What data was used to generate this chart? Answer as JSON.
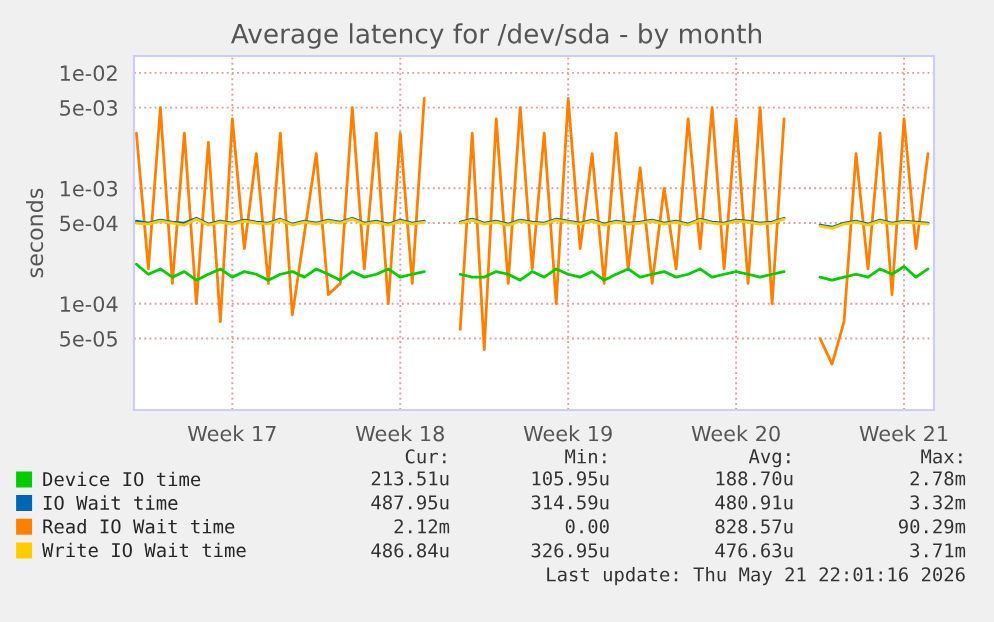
{
  "chart_data": {
    "type": "line",
    "title": "Average latency for /dev/sda - by month",
    "ylabel": "seconds",
    "log": "y",
    "grid": true,
    "legend": "bottom left",
    "line_style": "solid",
    "marker": "none",
    "ylim": [
      1.2e-05,
      0.014
    ],
    "yticks": [
      {
        "value": 5e-05,
        "label": "5e-05"
      },
      {
        "value": 0.0001,
        "label": "1e-04"
      },
      {
        "value": 0.0005,
        "label": "5e-04"
      },
      {
        "value": 0.001,
        "label": "1e-03"
      },
      {
        "value": 0.005,
        "label": "5e-03"
      },
      {
        "value": 0.01,
        "label": "1e-02"
      }
    ],
    "categories": [
      null,
      null,
      null,
      null,
      null,
      null,
      null,
      null,
      "Week 17",
      null,
      null,
      null,
      null,
      null,
      null,
      null,
      null,
      null,
      null,
      null,
      null,
      null,
      "Week 18",
      null,
      null,
      null,
      null,
      null,
      null,
      null,
      null,
      null,
      null,
      null,
      null,
      null,
      "Week 19",
      null,
      null,
      null,
      null,
      null,
      null,
      null,
      null,
      null,
      null,
      null,
      null,
      null,
      "Week 20",
      null,
      null,
      null,
      null,
      null,
      null,
      null,
      null,
      null,
      null,
      null,
      null,
      null,
      "Week 21",
      null,
      null
    ],
    "series": [
      {
        "name": "Read IO Wait time",
        "color": "#ff8000",
        "values": [
          0.003,
          0.0002,
          0.005,
          0.00015,
          0.003,
          0.0001,
          0.0025,
          7e-05,
          0.004,
          0.0003,
          0.002,
          0.00015,
          0.003,
          8e-05,
          0.0004,
          0.002,
          0.00012,
          0.00015,
          0.005,
          0.0002,
          0.003,
          0.0001,
          0.003,
          0.00015,
          0.006,
          null,
          null,
          6e-05,
          0.003,
          4e-05,
          0.004,
          0.00015,
          0.005,
          0.0002,
          0.003,
          0.0001,
          0.006,
          0.0003,
          0.002,
          0.00015,
          0.003,
          0.0002,
          0.0015,
          0.00015,
          0.001,
          0.0002,
          0.004,
          0.0003,
          0.005,
          0.0002,
          0.004,
          0.00015,
          0.005,
          0.0001,
          0.004,
          null,
          null,
          5e-05,
          3e-05,
          7e-05,
          0.002,
          0.0002,
          0.003,
          0.00012,
          0.004,
          0.0003,
          0.002
        ]
      },
      {
        "name": "IO Wait time",
        "color": "#0066b3",
        "values": [
          0.00052,
          0.0005,
          0.00053,
          0.00051,
          0.0005,
          0.00055,
          0.00049,
          0.00052,
          0.0005,
          0.00053,
          0.00051,
          0.0005,
          0.00054,
          0.00049,
          0.00052,
          0.0005,
          0.00053,
          0.00051,
          0.00055,
          0.0005,
          0.00052,
          0.00049,
          0.00053,
          0.0005,
          0.00052,
          null,
          null,
          0.00051,
          0.00054,
          0.0005,
          0.00052,
          0.00049,
          0.00053,
          0.00051,
          0.0005,
          0.00054,
          0.00052,
          0.0005,
          0.00053,
          0.00049,
          0.00052,
          0.0005,
          0.00051,
          0.00053,
          0.0005,
          0.00052,
          0.00049,
          0.00054,
          0.00051,
          0.0005,
          0.00053,
          0.00052,
          0.0005,
          0.00051,
          0.00055,
          null,
          null,
          0.00048,
          0.00046,
          0.0005,
          0.00052,
          0.00049,
          0.00053,
          0.0005,
          0.00052,
          0.00051,
          0.0005
        ]
      },
      {
        "name": "Write IO Wait time",
        "color": "#ffcc00",
        "values": [
          0.0005,
          0.00049,
          0.00052,
          0.0005,
          0.00048,
          0.00054,
          0.00048,
          0.00051,
          0.00049,
          0.00052,
          0.0005,
          0.00049,
          0.00053,
          0.00048,
          0.00051,
          0.00049,
          0.00052,
          0.0005,
          0.00054,
          0.00049,
          0.00051,
          0.00048,
          0.00052,
          0.00049,
          0.00051,
          null,
          null,
          0.0005,
          0.00053,
          0.00049,
          0.00051,
          0.00048,
          0.00052,
          0.0005,
          0.00049,
          0.00053,
          0.00051,
          0.00049,
          0.00052,
          0.00048,
          0.00051,
          0.00049,
          0.0005,
          0.00052,
          0.00049,
          0.00051,
          0.00048,
          0.00053,
          0.0005,
          0.00049,
          0.00052,
          0.00051,
          0.00049,
          0.0005,
          0.00054,
          null,
          null,
          0.00047,
          0.00045,
          0.00049,
          0.00051,
          0.00048,
          0.00052,
          0.00049,
          0.00051,
          0.0005,
          0.00049
        ]
      },
      {
        "name": "Device IO time",
        "color": "#00cc00",
        "values": [
          0.00022,
          0.00018,
          0.0002,
          0.00017,
          0.00019,
          0.00016,
          0.00018,
          0.0002,
          0.00017,
          0.00019,
          0.00018,
          0.00016,
          0.00018,
          0.00019,
          0.00017,
          0.0002,
          0.00018,
          0.00016,
          0.00019,
          0.00017,
          0.00018,
          0.0002,
          0.00017,
          0.00018,
          0.00019,
          null,
          null,
          0.00018,
          0.00017,
          0.00017,
          0.00019,
          0.00018,
          0.00016,
          0.00019,
          0.00017,
          0.0002,
          0.00018,
          0.00017,
          0.00019,
          0.00016,
          0.00018,
          0.0002,
          0.00017,
          0.00018,
          0.00019,
          0.00017,
          0.00018,
          0.0002,
          0.00017,
          0.00018,
          0.00019,
          0.00018,
          0.00017,
          0.00018,
          0.00019,
          null,
          null,
          0.00017,
          0.00016,
          0.00017,
          0.00018,
          0.00017,
          0.0002,
          0.00018,
          0.00021,
          0.00017,
          0.0002
        ]
      }
    ],
    "annotations": [
      "Cur:",
      "Min:",
      "Avg:",
      "Max:",
      "213.51u",
      "105.95u",
      "188.70u",
      "2.78m",
      "487.95u",
      "314.59u",
      "480.91u",
      "3.32m",
      "2.12m",
      "0.00",
      "828.57u",
      "90.29m",
      "486.84u",
      "326.95u",
      "476.63u",
      "3.71m",
      "Last update: Thu May 21 22:01:16 2026"
    ]
  }
}
